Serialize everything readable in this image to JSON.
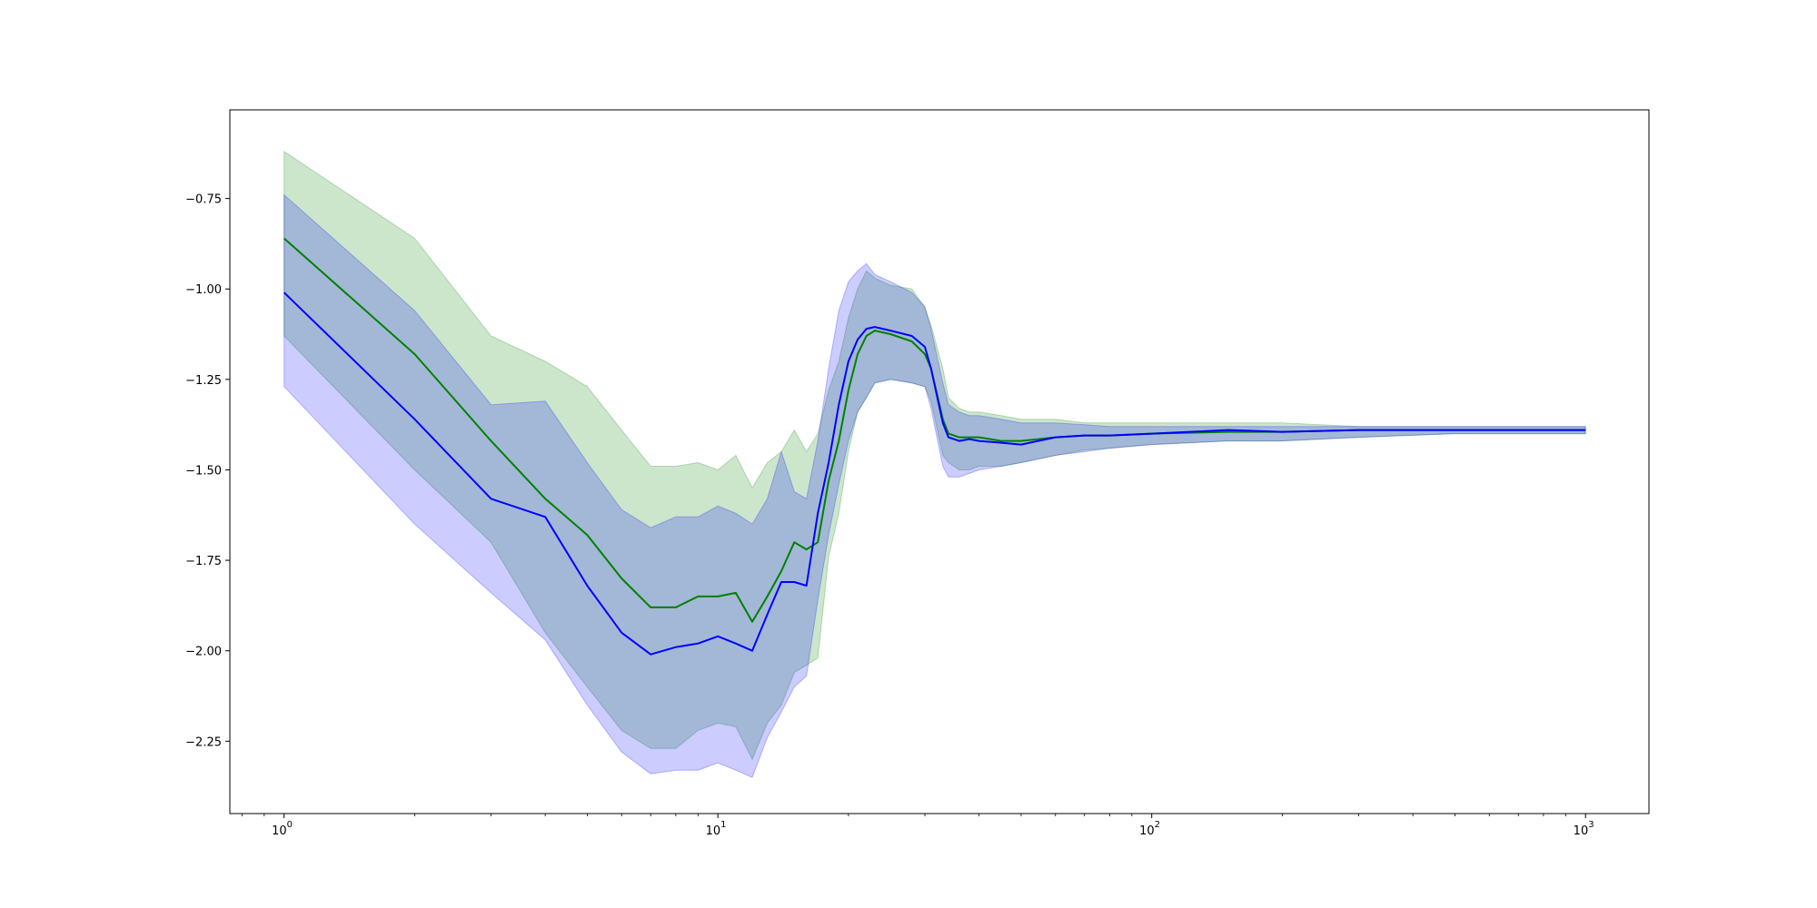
{
  "chart_data": {
    "type": "line",
    "xscale": "log",
    "xlim": [
      0.75,
      1400
    ],
    "ylim": [
      -2.45,
      -0.505
    ],
    "grid": false,
    "legend": "none",
    "y_ticks": [
      {
        "value": -0.75,
        "label": "−0.75"
      },
      {
        "value": -1.0,
        "label": "−1.00"
      },
      {
        "value": -1.25,
        "label": "−1.25"
      },
      {
        "value": -1.5,
        "label": "−1.50"
      },
      {
        "value": -1.75,
        "label": "−1.75"
      },
      {
        "value": -2.0,
        "label": "−2.00"
      },
      {
        "value": -2.25,
        "label": "−2.25"
      }
    ],
    "x_ticks": [
      {
        "value": 1,
        "base": "10",
        "exp": "0"
      },
      {
        "value": 10,
        "base": "10",
        "exp": "1"
      },
      {
        "value": 100,
        "base": "10",
        "exp": "2"
      },
      {
        "value": 1000,
        "base": "10",
        "exp": "3"
      }
    ],
    "series": [
      {
        "color": "#008000",
        "fill_color": "#008000",
        "x": [
          1,
          2,
          3,
          4,
          5,
          6,
          7,
          8,
          9,
          10,
          11,
          12,
          13,
          14,
          15,
          16,
          17,
          18,
          19,
          20,
          21,
          22,
          23,
          25,
          28,
          30,
          31,
          33,
          34,
          36,
          38,
          40,
          45,
          50,
          60,
          70,
          80,
          100,
          150,
          200,
          300,
          500,
          1000
        ],
        "y": [
          -0.86,
          -1.18,
          -1.42,
          -1.58,
          -1.68,
          -1.8,
          -1.88,
          -1.88,
          -1.85,
          -1.85,
          -1.84,
          -1.92,
          -1.85,
          -1.78,
          -1.7,
          -1.72,
          -1.7,
          -1.53,
          -1.42,
          -1.28,
          -1.18,
          -1.13,
          -1.115,
          -1.125,
          -1.145,
          -1.18,
          -1.22,
          -1.36,
          -1.4,
          -1.41,
          -1.41,
          -1.41,
          -1.42,
          -1.42,
          -1.41,
          -1.405,
          -1.405,
          -1.4,
          -1.395,
          -1.395,
          -1.39,
          -1.39,
          -1.39
        ],
        "upper": [
          -0.62,
          -0.86,
          -1.13,
          -1.2,
          -1.27,
          -1.39,
          -1.49,
          -1.49,
          -1.48,
          -1.5,
          -1.46,
          -1.55,
          -1.48,
          -1.45,
          -1.39,
          -1.45,
          -1.4,
          -1.28,
          -1.2,
          -1.08,
          -1.0,
          -0.95,
          -0.97,
          -0.99,
          -1.0,
          -1.05,
          -1.1,
          -1.22,
          -1.3,
          -1.33,
          -1.34,
          -1.34,
          -1.35,
          -1.36,
          -1.36,
          -1.37,
          -1.37,
          -1.37,
          -1.37,
          -1.37,
          -1.38,
          -1.38,
          -1.38
        ],
        "lower": [
          -1.13,
          -1.5,
          -1.7,
          -1.95,
          -2.1,
          -2.22,
          -2.27,
          -2.27,
          -2.22,
          -2.2,
          -2.21,
          -2.3,
          -2.2,
          -2.15,
          -2.06,
          -2.04,
          -2.02,
          -1.74,
          -1.62,
          -1.45,
          -1.34,
          -1.3,
          -1.26,
          -1.25,
          -1.26,
          -1.27,
          -1.31,
          -1.46,
          -1.48,
          -1.5,
          -1.5,
          -1.49,
          -1.49,
          -1.48,
          -1.46,
          -1.445,
          -1.44,
          -1.43,
          -1.42,
          -1.42,
          -1.41,
          -1.4,
          -1.4
        ]
      },
      {
        "color": "#0000ff",
        "fill_color": "#0000ff",
        "x": [
          1,
          2,
          3,
          4,
          5,
          6,
          7,
          8,
          9,
          10,
          11,
          12,
          13,
          14,
          15,
          16,
          17,
          18,
          19,
          20,
          21,
          22,
          23,
          25,
          28,
          30,
          31,
          33,
          34,
          36,
          38,
          40,
          45,
          50,
          60,
          70,
          80,
          100,
          150,
          200,
          300,
          500,
          1000
        ],
        "y": [
          -1.01,
          -1.36,
          -1.58,
          -1.63,
          -1.82,
          -1.95,
          -2.01,
          -1.99,
          -1.98,
          -1.96,
          -1.98,
          -2.0,
          -1.9,
          -1.81,
          -1.81,
          -1.82,
          -1.62,
          -1.48,
          -1.32,
          -1.2,
          -1.14,
          -1.11,
          -1.105,
          -1.115,
          -1.13,
          -1.16,
          -1.22,
          -1.37,
          -1.41,
          -1.42,
          -1.415,
          -1.42,
          -1.425,
          -1.43,
          -1.41,
          -1.405,
          -1.405,
          -1.4,
          -1.39,
          -1.395,
          -1.39,
          -1.39,
          -1.39
        ],
        "upper": [
          -0.74,
          -1.06,
          -1.32,
          -1.31,
          -1.48,
          -1.61,
          -1.66,
          -1.63,
          -1.63,
          -1.6,
          -1.62,
          -1.65,
          -1.58,
          -1.45,
          -1.56,
          -1.58,
          -1.42,
          -1.22,
          -1.06,
          -0.98,
          -0.95,
          -0.93,
          -0.96,
          -0.98,
          -1.01,
          -1.05,
          -1.11,
          -1.26,
          -1.32,
          -1.34,
          -1.35,
          -1.35,
          -1.36,
          -1.37,
          -1.37,
          -1.375,
          -1.38,
          -1.38,
          -1.38,
          -1.38,
          -1.38,
          -1.38,
          -1.38
        ],
        "lower": [
          -1.27,
          -1.65,
          -1.84,
          -1.97,
          -2.15,
          -2.28,
          -2.34,
          -2.33,
          -2.33,
          -2.31,
          -2.33,
          -2.35,
          -2.24,
          -2.17,
          -2.1,
          -2.07,
          -1.86,
          -1.68,
          -1.54,
          -1.42,
          -1.34,
          -1.3,
          -1.26,
          -1.25,
          -1.26,
          -1.27,
          -1.33,
          -1.49,
          -1.52,
          -1.52,
          -1.51,
          -1.5,
          -1.49,
          -1.48,
          -1.46,
          -1.45,
          -1.44,
          -1.43,
          -1.42,
          -1.42,
          -1.41,
          -1.4,
          -1.4
        ]
      }
    ]
  }
}
